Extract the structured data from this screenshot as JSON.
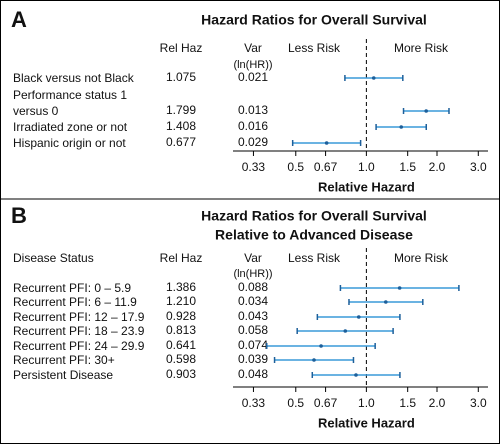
{
  "chart_data": [
    {
      "type": "forest",
      "panel": "A",
      "title": "Hazard Ratios for Overall Survival",
      "value_header": "Rel Haz",
      "variance_header": "Var",
      "variance_subheader": "(ln(HR))",
      "left_label": "Less Risk",
      "right_label": "More Risk",
      "xlabel": "Relative Hazard",
      "categories": [
        "Black versus not Black",
        "Performance status 1\nversus 0",
        "Irradiated zone or not",
        "Hispanic origin or not"
      ],
      "values": [
        1.075,
        1.799,
        1.408,
        0.677
      ],
      "variance": [
        0.021,
        0.013,
        0.016,
        0.029
      ],
      "lower": [
        0.81,
        1.44,
        1.1,
        0.485
      ],
      "upper": [
        1.43,
        2.25,
        1.8,
        0.945
      ],
      "color": "#3a9ad9",
      "log_x": true,
      "reference_line": 1,
      "xlim": [
        0.27,
        3.3
      ],
      "xticks": [
        0.33,
        0.5,
        0.67,
        {
          "value": 1,
          "label": "1.0"
        },
        1.5,
        {
          "value": 2,
          "label": "2.0"
        },
        {
          "value": 3,
          "label": "3.0"
        }
      ]
    },
    {
      "type": "forest",
      "panel": "B",
      "title": "Hazard Ratios for Overall Survival",
      "subtitle": "Relative to Advanced Disease",
      "row_header": "Disease Status",
      "value_header": "Rel Haz",
      "variance_header": "Var",
      "variance_subheader": "(ln(HR))",
      "left_label": "Less Risk",
      "right_label": "More Risk",
      "xlabel": "Relative Hazard",
      "categories": [
        "Recurrent PFI: 0 – 5.9",
        "Recurrent PFI: 6 – 11.9",
        "Recurrent PFI: 12 – 17.9",
        "Recurrent PFI: 18 – 23.9",
        "Recurrent PFI: 24 – 29.9",
        "Recurrent PFI: 30+",
        "Persistent Disease"
      ],
      "values": [
        1.386,
        1.21,
        0.928,
        0.813,
        0.641,
        0.598,
        0.903
      ],
      "value_labels": [
        "1.386",
        "1.210",
        "0.928",
        "0.813",
        "0.641",
        "0.598",
        "0.903"
      ],
      "variance": [
        0.088,
        0.034,
        0.043,
        0.058,
        0.074,
        0.039,
        0.048
      ],
      "lower": [
        0.775,
        0.843,
        0.618,
        0.507,
        0.376,
        0.406,
        0.588
      ],
      "upper": [
        2.48,
        1.74,
        1.39,
        1.3,
        1.09,
        0.881,
        1.39
      ],
      "color": "#3a9ad9",
      "log_x": true,
      "reference_line": 1,
      "xlim": [
        0.27,
        3.3
      ],
      "xticks": [
        0.33,
        0.5,
        0.67,
        {
          "value": 1,
          "label": "1.0"
        },
        1.5,
        {
          "value": 2,
          "label": "2.0"
        },
        {
          "value": 3,
          "label": "3.0"
        }
      ]
    }
  ]
}
